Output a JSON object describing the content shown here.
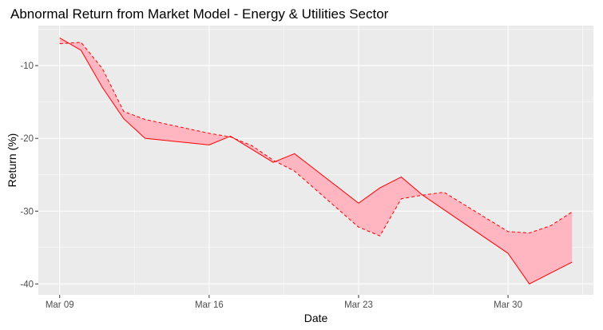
{
  "chart_data": {
    "type": "line",
    "title": "Abnormal Return from Market Model - Energy & Utilities Sector",
    "xlabel": "Date",
    "ylabel": "Return (%)",
    "x_ticks": [
      "Mar 09",
      "Mar 16",
      "Mar 23",
      "Mar 30"
    ],
    "y_ticks": [
      -10,
      -20,
      -30,
      -40
    ],
    "xlim": [
      "2020-03-08",
      "2020-04-03"
    ],
    "ylim": [
      -41.5,
      -4.5
    ],
    "grid": true,
    "x": [
      "2020-03-09",
      "2020-03-10",
      "2020-03-11",
      "2020-03-12",
      "2020-03-13",
      "2020-03-16",
      "2020-03-17",
      "2020-03-18",
      "2020-03-19",
      "2020-03-20",
      "2020-03-23",
      "2020-03-24",
      "2020-03-25",
      "2020-03-26",
      "2020-03-27",
      "2020-03-30",
      "2020-03-31",
      "2020-04-01",
      "2020-04-02"
    ],
    "series": [
      {
        "style": "solid",
        "color": "#ff0000",
        "values": [
          -6.2,
          -7.9,
          -13.0,
          -17.3,
          -20.0,
          -20.9,
          -19.7,
          -21.5,
          -23.3,
          -22.1,
          -28.9,
          -26.8,
          -25.3,
          -27.8,
          -29.8,
          -35.8,
          -40.0,
          -38.5,
          -37.0
        ]
      },
      {
        "style": "dashed",
        "color": "#ff0000",
        "values": [
          -7.0,
          -6.8,
          -10.4,
          -16.3,
          -17.4,
          -19.3,
          -19.8,
          -21.0,
          -23.0,
          -24.5,
          -32.2,
          -33.4,
          -28.3,
          -27.8,
          -27.4,
          -32.8,
          -33.0,
          -32.0,
          -30.1
        ]
      }
    ],
    "ribbon_color": "#ffb6c1",
    "panel_color": "#ebebeb",
    "grid_color": "#ffffff"
  }
}
